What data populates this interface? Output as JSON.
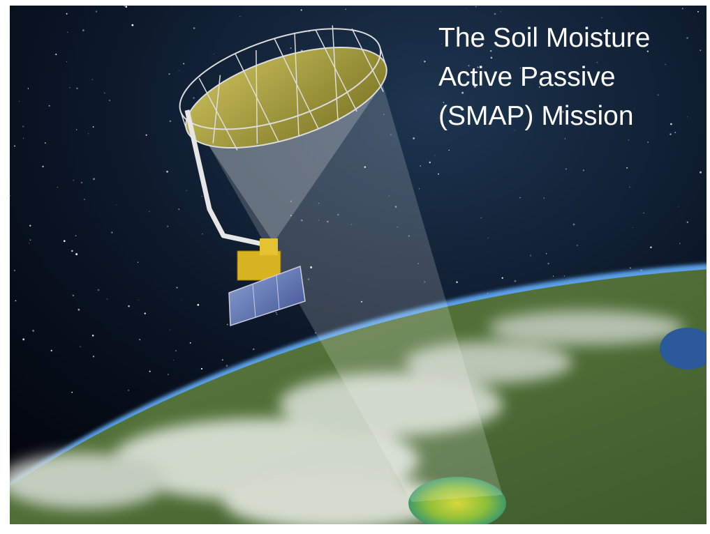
{
  "title": {
    "lines": [
      "The Soil Moisture",
      "Active Passive",
      "(SMAP) Mission"
    ]
  }
}
